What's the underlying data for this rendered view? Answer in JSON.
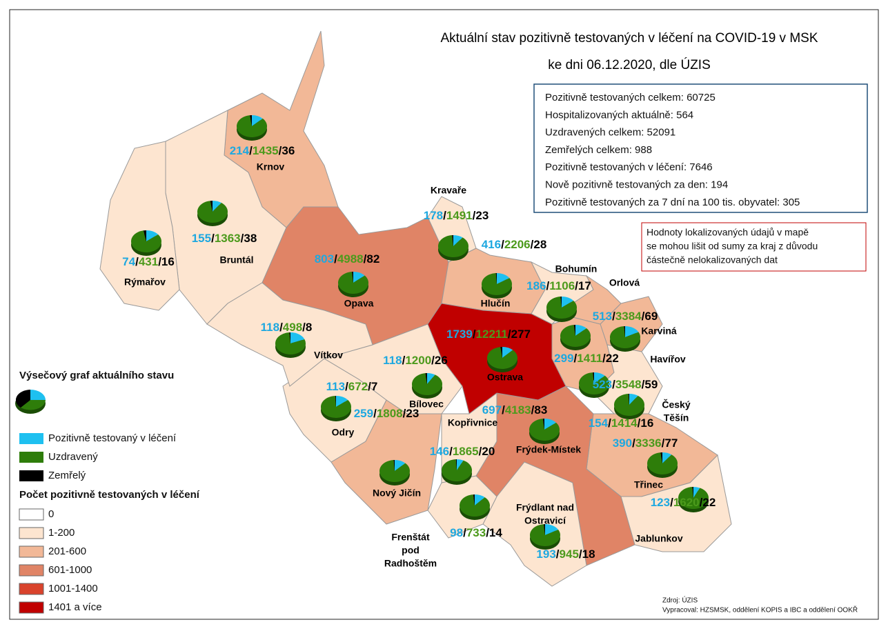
{
  "header": {
    "title": "Aktuální stav pozitivně testovaných v léčení na COVID-19 v MSK",
    "subtitle": "ke dni 06.12.2020, dle ÚZIS"
  },
  "summary": [
    "Pozitivně testovaných celkem: 60725",
    "Hospitalizovaných aktuálně: 564",
    "Uzdravených celkem: 52091",
    "Zemřelých celkem: 988",
    "Pozitivně testovaných v léčení: 7646",
    "Nově pozitivně testovaných za den: 194",
    "Pozitivně testovaných za 7 dní na 100 tis. obyvatel: 305"
  ],
  "note": [
    "Hodnoty lokalizovaných údajů v mapě",
    "se mohou lišit od sumy za kraj z důvodu",
    "částečně nelokalizovaných dat"
  ],
  "number_separator": "/",
  "pie_legend": {
    "title": "Výsečový graf aktuálního stavu",
    "items": [
      {
        "label": "Pozitivně testovaný v léčení",
        "color": "#1ec0f0"
      },
      {
        "label": "Uzdravený",
        "color": "#2e7d0a"
      },
      {
        "label": "Zemřelý",
        "color": "#000000"
      }
    ]
  },
  "class_legend": {
    "title": "Počet pozitivně testovaných v léčení",
    "items": [
      {
        "label": "0",
        "color": "#ffffff"
      },
      {
        "label": "1-200",
        "color": "#fde5d0"
      },
      {
        "label": "201-600",
        "color": "#f2b897"
      },
      {
        "label": "601-1000",
        "color": "#e08466"
      },
      {
        "label": "1001-1400",
        "color": "#d9432c"
      },
      {
        "label": "1401 a více",
        "color": "#c00000"
      }
    ]
  },
  "districts": [
    {
      "name": [
        "Krnov"
      ],
      "active": 214,
      "recovered": 1435,
      "deceased": 36,
      "color": "#f2b897"
    },
    {
      "name": [
        "Bruntál"
      ],
      "active": 155,
      "recovered": 1363,
      "deceased": 38,
      "color": "#fde5d0"
    },
    {
      "name": [
        "Rýmařov"
      ],
      "active": 74,
      "recovered": 431,
      "deceased": 16,
      "color": "#fde5d0"
    },
    {
      "name": [
        "Opava"
      ],
      "active": 803,
      "recovered": 4988,
      "deceased": 82,
      "color": "#e08466"
    },
    {
      "name": [
        "Kravaře"
      ],
      "active": 178,
      "recovered": 1491,
      "deceased": 23,
      "color": "#fde5d0"
    },
    {
      "name": [
        "Hlučín"
      ],
      "active": 416,
      "recovered": 2206,
      "deceased": 28,
      "color": "#f2b897"
    },
    {
      "name": [
        "Bohumín"
      ],
      "active": 186,
      "recovered": 1106,
      "deceased": 17,
      "color": "#fde5d0"
    },
    {
      "name": [
        "Orlová"
      ],
      "active": 513,
      "recovered": 3384,
      "deceased": 69,
      "color": "#f2b897"
    },
    {
      "name": [
        "Karviná"
      ],
      "active": 299,
      "recovered": 1411,
      "deceased": 22,
      "color": "#f2b897"
    },
    {
      "name": [
        "Havířov"
      ],
      "active": 523,
      "recovered": 3548,
      "deceased": 59,
      "color": "#f2b897"
    },
    {
      "name": [
        "Český",
        "Těšín"
      ],
      "active": 154,
      "recovered": 1414,
      "deceased": 16,
      "color": "#fde5d0"
    },
    {
      "name": [
        "Třinec"
      ],
      "active": 390,
      "recovered": 3336,
      "deceased": 77,
      "color": "#f2b897"
    },
    {
      "name": [
        "Jablunkov"
      ],
      "active": 123,
      "recovered": 1620,
      "deceased": 22,
      "color": "#fde5d0"
    },
    {
      "name": [
        "Frýdek-Místek"
      ],
      "active": 697,
      "recovered": 4183,
      "deceased": 83,
      "color": "#e08466"
    },
    {
      "name": [
        "Frýdlant nad",
        "Ostravicí"
      ],
      "active": 193,
      "recovered": 945,
      "deceased": 18,
      "color": "#fde5d0"
    },
    {
      "name": [
        "Frenštát",
        "pod",
        "Radhoštěm"
      ],
      "active": 98,
      "recovered": 733,
      "deceased": 14,
      "color": "#fde5d0"
    },
    {
      "name": [
        "Kopřivnice"
      ],
      "active": 146,
      "recovered": 1865,
      "deceased": 20,
      "color": "#fde5d0"
    },
    {
      "name": [
        "Nový Jičín"
      ],
      "active": 259,
      "recovered": 1808,
      "deceased": 23,
      "color": "#f2b897"
    },
    {
      "name": [
        "Odry"
      ],
      "active": 113,
      "recovered": 672,
      "deceased": 7,
      "color": "#fde5d0"
    },
    {
      "name": [
        "Bílovec"
      ],
      "active": 118,
      "recovered": 1200,
      "deceased": 26,
      "color": "#fde5d0"
    },
    {
      "name": [
        "Vítkov"
      ],
      "active": 118,
      "recovered": 498,
      "deceased": 8,
      "color": "#fde5d0"
    },
    {
      "name": [
        "Ostrava"
      ],
      "active": 1739,
      "recovered": 12211,
      "deceased": 277,
      "color": "#c00000"
    }
  ],
  "source": [
    "Zdroj: ÚZIS",
    "Vypracoval: HZSMSK, oddělení KOPIS a IBC a oddělení OOKŘ"
  ]
}
